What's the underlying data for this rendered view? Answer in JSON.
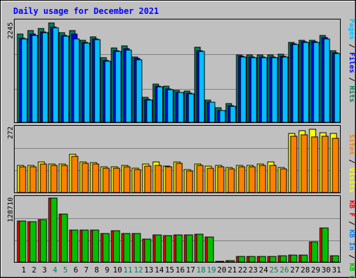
{
  "title": "Daily usage for December 2021",
  "days": [
    "1",
    "2",
    "3",
    "4",
    "5",
    "6",
    "7",
    "8",
    "9",
    "10",
    "11",
    "12",
    "13",
    "14",
    "15",
    "16",
    "17",
    "18",
    "19",
    "20",
    "21",
    "22",
    "23",
    "24",
    "25",
    "26",
    "27",
    "28",
    "29",
    "30",
    "31"
  ],
  "weekend_days": [
    "4",
    "5",
    "11",
    "12",
    "18",
    "19",
    "25",
    "26"
  ],
  "colors": {
    "hits": "#00805c",
    "files": "#0000ff",
    "pages": "#00c0ff",
    "visits": "#ffff00",
    "sites": "#ff8000",
    "kb_f": "#ff0000",
    "kb_in": "#0080ff",
    "kb_out": "#00c000",
    "weekend": "#00805c",
    "title": "#0000ff"
  },
  "chart_data": [
    {
      "type": "bar",
      "panel": "hits-files-pages",
      "ylabel": "Pages / Files / Hits",
      "ytick": "2245",
      "ylim": [
        0,
        2245
      ],
      "categories": [
        "1",
        "2",
        "3",
        "4",
        "5",
        "6",
        "7",
        "8",
        "9",
        "10",
        "11",
        "12",
        "13",
        "14",
        "15",
        "16",
        "17",
        "18",
        "19",
        "20",
        "21",
        "22",
        "23",
        "24",
        "25",
        "26",
        "27",
        "28",
        "29",
        "30",
        "31"
      ],
      "series": [
        {
          "name": "Hits",
          "values": [
            2000,
            2080,
            2120,
            2245,
            2030,
            2070,
            1860,
            1930,
            1460,
            1680,
            1720,
            1480,
            570,
            870,
            820,
            730,
            700,
            1690,
            500,
            330,
            420,
            1530,
            1520,
            1530,
            1530,
            1540,
            1810,
            1860,
            1860,
            1960,
            1610
          ]
        },
        {
          "name": "Files",
          "values": [
            1900,
            1990,
            2040,
            2150,
            1960,
            1990,
            1800,
            1880,
            1400,
            1620,
            1660,
            1440,
            520,
            820,
            760,
            680,
            660,
            1620,
            460,
            270,
            370,
            1490,
            1470,
            1470,
            1470,
            1490,
            1770,
            1820,
            1820,
            1910,
            1570
          ]
        },
        {
          "name": "Pages",
          "values": [
            1880,
            1970,
            2020,
            2130,
            1940,
            1880,
            1790,
            1870,
            1380,
            1600,
            1640,
            1420,
            510,
            800,
            740,
            670,
            650,
            1600,
            460,
            260,
            360,
            1470,
            1460,
            1460,
            1460,
            1470,
            1760,
            1810,
            1810,
            1890,
            1560
          ]
        }
      ]
    },
    {
      "type": "bar",
      "panel": "visits-sites",
      "ylabel": "Visits / Sites",
      "ytick": "272",
      "ylim": [
        0,
        272
      ],
      "categories": [
        "1",
        "2",
        "3",
        "4",
        "5",
        "6",
        "7",
        "8",
        "9",
        "10",
        "11",
        "12",
        "13",
        "14",
        "15",
        "16",
        "17",
        "18",
        "19",
        "20",
        "21",
        "22",
        "23",
        "24",
        "25",
        "26",
        "27",
        "28",
        "29",
        "30",
        "31"
      ],
      "series": [
        {
          "name": "Visits",
          "values": [
            112,
            112,
            125,
            116,
            118,
            157,
            127,
            122,
            107,
            107,
            112,
            100,
            117,
            127,
            110,
            127,
            95,
            117,
            108,
            112,
            103,
            112,
            113,
            117,
            127,
            103,
            244,
            256,
            260,
            247,
            243
          ]
        },
        {
          "name": "Sites",
          "values": [
            107,
            105,
            117,
            112,
            113,
            150,
            121,
            117,
            100,
            101,
            106,
            94,
            110,
            113,
            105,
            120,
            88,
            112,
            101,
            106,
            97,
            107,
            107,
            111,
            113,
            98,
            232,
            237,
            230,
            232,
            222
          ]
        }
      ]
    },
    {
      "type": "bar",
      "panel": "kbytes",
      "ylabel": "KB F / KB In / KB Out",
      "ytick": "128710",
      "ylim": [
        0,
        128710
      ],
      "categories": [
        "1",
        "2",
        "3",
        "4",
        "5",
        "6",
        "7",
        "8",
        "9",
        "10",
        "11",
        "12",
        "13",
        "14",
        "15",
        "16",
        "17",
        "18",
        "19",
        "20",
        "21",
        "22",
        "23",
        "24",
        "25",
        "26",
        "27",
        "28",
        "29",
        "30",
        "31"
      ],
      "series": [
        {
          "name": "KB F",
          "values": [
            83000,
            81000,
            85000,
            128710,
            97000,
            64000,
            65000,
            64000,
            58000,
            63000,
            58000,
            57000,
            46000,
            54000,
            53000,
            54000,
            54000,
            56000,
            50000,
            1000,
            3000,
            11000,
            11000,
            11000,
            11000,
            12000,
            14000,
            14000,
            41000,
            69000,
            13000
          ]
        },
        {
          "name": "KB Out",
          "values": [
            83000,
            81000,
            85000,
            128710,
            97000,
            64000,
            65000,
            64000,
            58000,
            63000,
            58000,
            57000,
            46000,
            54000,
            53000,
            54000,
            54000,
            56000,
            50000,
            1000,
            3000,
            11000,
            11000,
            11000,
            11000,
            12000,
            14000,
            14000,
            41000,
            69000,
            13000
          ]
        }
      ]
    }
  ],
  "right_labels": {
    "top": [
      {
        "text": "Pages",
        "color": "#00c0ff"
      },
      {
        "text": " / ",
        "color": "#000000"
      },
      {
        "text": "Files",
        "color": "#0000ff"
      },
      {
        "text": " / ",
        "color": "#000000"
      },
      {
        "text": "Hits",
        "color": "#00805c"
      }
    ],
    "middle": [
      {
        "text": "Sites",
        "color": "#ff8000"
      },
      {
        "text": " / ",
        "color": "#000000"
      },
      {
        "text": "Visits",
        "color": "#ffff00"
      }
    ],
    "bottom": [
      {
        "text": "KB F",
        "color": "#ff0000"
      },
      {
        "text": " / ",
        "color": "#000000"
      },
      {
        "text": "KB In",
        "color": "#0080ff"
      },
      {
        "text": " / ",
        "color": "#000000"
      },
      {
        "text": "KB Out",
        "color": "#00c000"
      }
    ]
  }
}
